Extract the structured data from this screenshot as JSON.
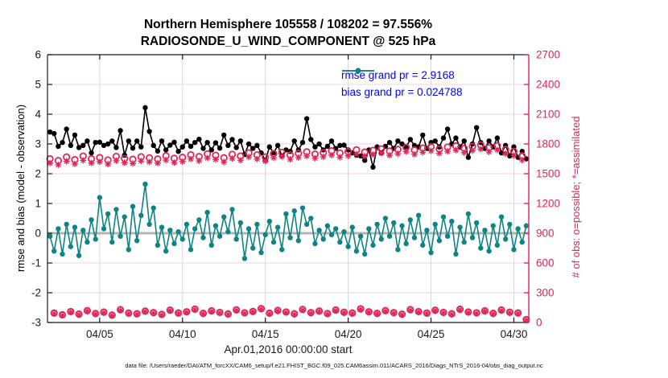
{
  "figure": {
    "footer": "data file: /Users/raeder/DAI/ATM_forcXX/CAM6_setup/f.e21.FHIST_BGC.f09_025.CAM6assim.011/ACARS_2016/Diags_NTrS_2016-04/obs_diag_output.nc"
  },
  "chart_data": {
    "type": "line",
    "title": "Northern Hemisphere 105558 / 108202 = 97.556%",
    "subtitle": "RADIOSONDE_U_WIND_COMPONENT @ 525 hPa",
    "xlabel": "Apr.01,2016 00:00:00 start",
    "ylabel_left": "rmse and bias (model - observation)",
    "ylabel_right": "# of obs: o=possible; *=assimilated",
    "ylim_left": [
      -3,
      6
    ],
    "yticks_left": [
      -3,
      -2,
      -1,
      0,
      1,
      2,
      3,
      4,
      5,
      6
    ],
    "ylim_right": [
      0,
      2700
    ],
    "yticks_right": [
      0,
      300,
      600,
      900,
      1200,
      1500,
      1800,
      2100,
      2400,
      2700
    ],
    "xlim_days": [
      1.85,
      30.9
    ],
    "xticks": [
      {
        "day": 5,
        "label": "04/05"
      },
      {
        "day": 10,
        "label": "04/10"
      },
      {
        "day": 15,
        "label": "04/15"
      },
      {
        "day": 20,
        "label": "04/20"
      },
      {
        "day": 25,
        "label": "04/25"
      },
      {
        "day": 30,
        "label": "04/30"
      }
    ],
    "grid": {
      "horizontal": true,
      "vertical": true
    },
    "legend": [
      {
        "label": "rmse grand pr = 2.9168",
        "series": "rmse"
      },
      {
        "label": "bias grand pr = 0.024788",
        "series": "bias"
      }
    ],
    "stats": {
      "rmse_grand_pr": 2.9168,
      "bias_grand_pr": 0.024788,
      "n_assimilated": 105558,
      "n_possible": 108202,
      "percent_assimilated": 97.556
    },
    "colors": {
      "rmse": "#000000",
      "bias": "#0e8584",
      "obs": "#e02558",
      "zero_line": "#b3b3b3",
      "grid_h": "#f3d2dc",
      "grid_v": "#d8d8d8",
      "legend_text": "#0000ff",
      "axis": "#1a1a1a"
    },
    "time": {
      "start_day": 2.0,
      "step_days": 0.25,
      "count": 116,
      "note": "days of April 2016; bins at 00/06/12/18Z; even indices = 00Z/12Z (high obs counts), odd = 06Z/18Z (low counts)"
    },
    "series": {
      "rmse": [
        3.4,
        3.35,
        2.92,
        3.05,
        3.5,
        2.95,
        3.3,
        2.88,
        2.95,
        3.1,
        2.7,
        3.05,
        3.06,
        2.95,
        3.0,
        3.1,
        2.88,
        3.45,
        2.62,
        3.1,
        2.86,
        3.1,
        2.9,
        4.22,
        3.42,
        2.95,
        2.76,
        3.1,
        2.8,
        2.96,
        3.06,
        2.75,
        2.9,
        3.1,
        2.92,
        3.05,
        3.16,
        2.85,
        3.05,
        2.8,
        3.04,
        2.86,
        3.3,
        2.95,
        3.15,
        2.88,
        3.1,
        2.65,
        3.0,
        2.85,
        2.95,
        2.7,
        2.45,
        2.9,
        2.7,
        2.95,
        2.6,
        2.8,
        2.75,
        3.1,
        2.8,
        3.05,
        3.85,
        3.15,
        2.9,
        3.0,
        2.8,
        2.92,
        3.1,
        2.85,
        2.95,
        2.96,
        2.8,
        2.7,
        2.62,
        2.6,
        2.45,
        2.8,
        2.22,
        2.9,
        2.7,
        2.92,
        3.05,
        2.85,
        3.1,
        3.0,
        2.9,
        3.15,
        2.95,
        2.9,
        3.3,
        2.85,
        3.05,
        3.1,
        2.9,
        3.2,
        3.5,
        3.0,
        3.2,
        2.9,
        3.1,
        2.55,
        3.0,
        3.55,
        3.05,
        2.85,
        3.1,
        2.9,
        3.2,
        2.7,
        2.95,
        2.6,
        2.9,
        2.55,
        2.75,
        2.5
      ],
      "bias": [
        -0.1,
        -0.6,
        0.15,
        -0.7,
        0.3,
        -0.45,
        0.2,
        -0.75,
        0.1,
        -0.3,
        0.45,
        -0.2,
        1.2,
        0.15,
        0.65,
        -0.3,
        0.8,
        -0.1,
        0.55,
        -0.55,
        0.9,
        -0.25,
        0.6,
        1.65,
        0.3,
        0.85,
        -0.4,
        0.2,
        -0.6,
        0.1,
        -0.35,
        0.05,
        -0.2,
        0.3,
        -0.55,
        0.15,
        0.45,
        -0.15,
        0.7,
        -0.4,
        0.25,
        -0.1,
        0.55,
        0.05,
        0.8,
        -0.2,
        0.35,
        -0.85,
        0.15,
        -0.5,
        0.3,
        -0.65,
        -0.05,
        0.4,
        -0.3,
        0.2,
        -0.55,
        0.65,
        -0.15,
        0.75,
        -0.25,
        0.85,
        0.3,
        0.5,
        -0.35,
        0.1,
        -0.2,
        0.25,
        -0.05,
        0.15,
        -0.3,
        0.05,
        -0.45,
        0.2,
        -0.6,
        -0.1,
        -0.7,
        0.15,
        -0.4,
        0.3,
        -0.2,
        0.5,
        -0.1,
        0.35,
        -0.55,
        0.25,
        -0.35,
        0.45,
        -0.15,
        0.6,
        -0.4,
        0.1,
        -0.65,
        0.3,
        -0.25,
        0.55,
        -0.1,
        0.4,
        -0.7,
        0.2,
        -0.3,
        0.65,
        -0.15,
        0.35,
        -0.5,
        0.1,
        -0.6,
        0.25,
        -0.4,
        0.55,
        -0.2,
        0.3,
        -0.55,
        0.15,
        -0.3,
        0.25
      ],
      "counts": {
        "high_bins_possible": [
          1650,
          1632,
          1668,
          1641,
          1677,
          1650,
          1662,
          1638,
          1674,
          1653,
          1645,
          1670,
          1660,
          1648,
          1680,
          1655,
          1665,
          1690,
          1672,
          1700,
          1686,
          1660,
          1695,
          1678,
          1710,
          1690,
          1668,
          1702,
          1715,
          1688,
          1705,
          1720,
          1698,
          1712,
          1730,
          1708,
          1722,
          1740,
          1718,
          1735,
          1750,
          1728,
          1745,
          1765,
          1738,
          1758,
          1772,
          1748,
          1768,
          1780,
          1755,
          1775,
          1790,
          1762,
          1782,
          1744,
          1725,
          1680
        ],
        "high_bins_assimilated": [
          1608,
          1590,
          1626,
          1599,
          1635,
          1608,
          1620,
          1596,
          1632,
          1611,
          1603,
          1628,
          1618,
          1606,
          1638,
          1613,
          1623,
          1648,
          1630,
          1658,
          1644,
          1618,
          1653,
          1636,
          1668,
          1648,
          1626,
          1660,
          1673,
          1646,
          1663,
          1678,
          1656,
          1670,
          1688,
          1666,
          1680,
          1698,
          1676,
          1693,
          1708,
          1686,
          1703,
          1723,
          1696,
          1716,
          1730,
          1706,
          1726,
          1738,
          1713,
          1733,
          1748,
          1720,
          1740,
          1702,
          1683,
          1638
        ],
        "low_bins_possible": [
          95,
          78,
          110,
          85,
          120,
          90,
          105,
          75,
          130,
          95,
          88,
          115,
          100,
          82,
          125,
          96,
          108,
          135,
          92,
          118,
          102,
          86,
          128,
          98,
          112,
          140,
          94,
          122,
          106,
          88,
          132,
          100,
          116,
          90,
          126,
          104,
          96,
          138,
          108,
          92,
          120,
          100,
          84,
          130,
          110,
          95,
          124,
          102,
          88,
          134,
          106,
          98,
          118,
          92,
          126,
          104,
          96,
          30
        ],
        "low_bins_assimilated": [
          89,
          72,
          104,
          79,
          114,
          84,
          99,
          69,
          124,
          89,
          82,
          109,
          94,
          76,
          119,
          90,
          102,
          129,
          86,
          112,
          96,
          80,
          122,
          92,
          106,
          134,
          88,
          116,
          100,
          82,
          126,
          94,
          110,
          84,
          120,
          98,
          90,
          132,
          102,
          86,
          114,
          94,
          78,
          124,
          104,
          89,
          118,
          96,
          82,
          128,
          100,
          92,
          112,
          86,
          120,
          98,
          90,
          24
        ]
      }
    }
  }
}
